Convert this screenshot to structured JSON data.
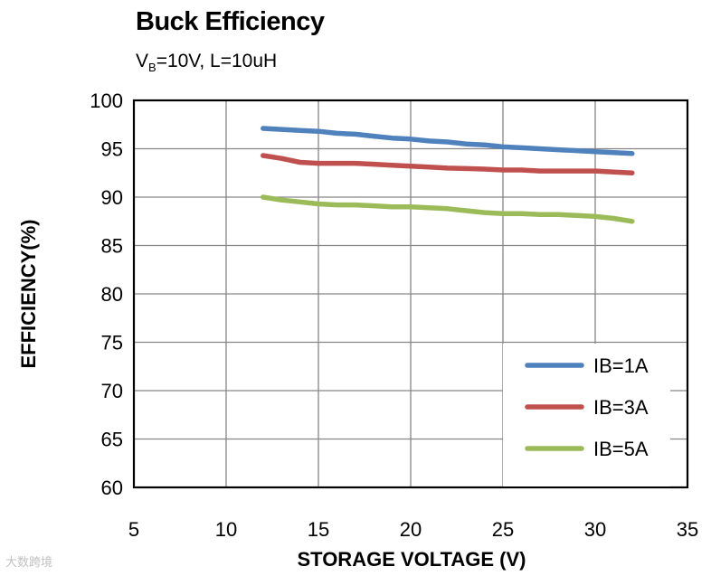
{
  "title": "Buck Efficiency",
  "subtitle": {
    "prefix": "V",
    "sub": "B",
    "suffix": "=10V, L=10uH"
  },
  "watermark": "大数跨境",
  "chart_data": {
    "type": "line",
    "xlabel": "STORAGE VOLTAGE (V)",
    "ylabel": "EFFICIENCY(%)",
    "xlim": [
      5,
      35
    ],
    "ylim": [
      60,
      100
    ],
    "xticks": [
      5,
      10,
      15,
      20,
      25,
      30,
      35
    ],
    "yticks": [
      60,
      65,
      70,
      75,
      80,
      85,
      90,
      95,
      100
    ],
    "grid": true,
    "legend_position": "bottom-right",
    "series": [
      {
        "name": "IB=1A",
        "color": "#4f81bd",
        "x": [
          12,
          13,
          14,
          15,
          16,
          17,
          18,
          19,
          20,
          21,
          22,
          23,
          24,
          25,
          26,
          27,
          28,
          29,
          30,
          31,
          32
        ],
        "y": [
          97.1,
          97.0,
          96.9,
          96.8,
          96.6,
          96.5,
          96.3,
          96.1,
          96.0,
          95.8,
          95.7,
          95.5,
          95.4,
          95.2,
          95.1,
          95.0,
          94.9,
          94.8,
          94.7,
          94.6,
          94.5
        ]
      },
      {
        "name": "IB=3A",
        "color": "#c0504d",
        "x": [
          12,
          13,
          14,
          15,
          16,
          17,
          18,
          19,
          20,
          21,
          22,
          23,
          24,
          25,
          26,
          27,
          28,
          29,
          30,
          31,
          32
        ],
        "y": [
          94.3,
          94.0,
          93.6,
          93.5,
          93.5,
          93.5,
          93.4,
          93.3,
          93.2,
          93.1,
          93.0,
          92.95,
          92.9,
          92.8,
          92.8,
          92.7,
          92.7,
          92.7,
          92.7,
          92.6,
          92.5
        ]
      },
      {
        "name": "IB=5A",
        "color": "#9bbb59",
        "x": [
          12,
          13,
          14,
          15,
          16,
          17,
          18,
          19,
          20,
          21,
          22,
          23,
          24,
          25,
          26,
          27,
          28,
          29,
          30,
          31,
          32
        ],
        "y": [
          90.0,
          89.7,
          89.5,
          89.3,
          89.2,
          89.2,
          89.1,
          89.0,
          89.0,
          88.9,
          88.8,
          88.6,
          88.4,
          88.3,
          88.3,
          88.2,
          88.2,
          88.1,
          88.0,
          87.8,
          87.5
        ]
      }
    ]
  }
}
